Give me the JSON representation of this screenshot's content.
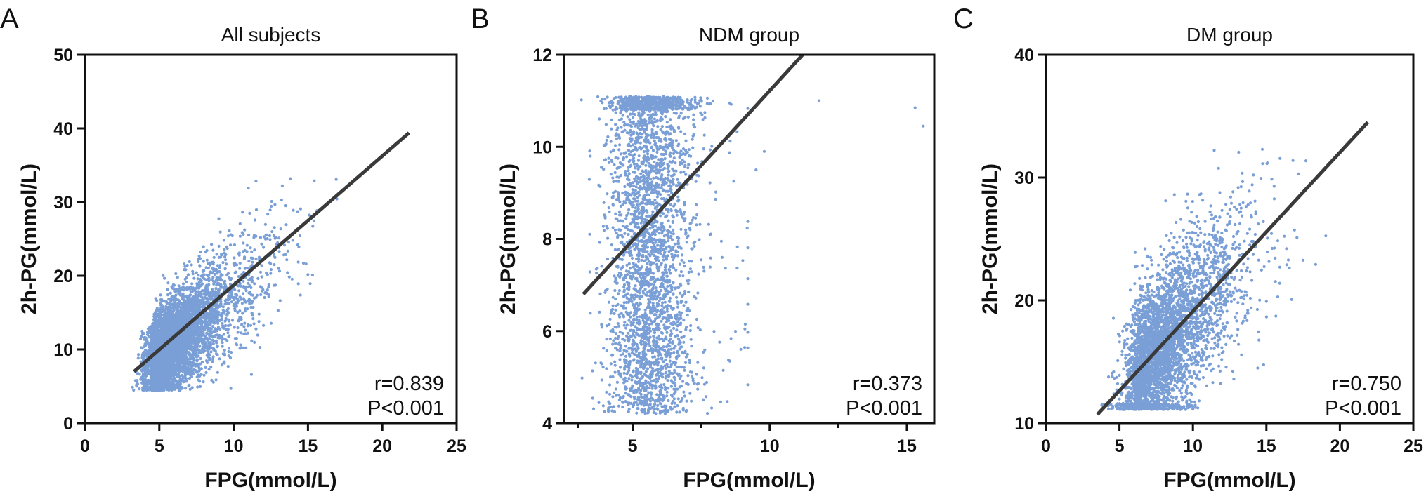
{
  "colors": {
    "points": "#7a9fd6",
    "fit_line": "#3a3a3a",
    "axes": "#111111"
  },
  "chart_data": [
    {
      "type": "scatter",
      "panel_letter": "A",
      "title": "All subjects",
      "xlabel": "FPG(mmol/L)",
      "ylabel": "2h-PG(mmol/L)",
      "xlim": [
        0,
        25
      ],
      "ylim": [
        0,
        50
      ],
      "xticks": [
        0,
        5,
        10,
        15,
        20,
        25
      ],
      "yticks": [
        0,
        10,
        20,
        30,
        40,
        50
      ],
      "xtick_labels": [
        "0",
        "5",
        "10",
        "15",
        "20",
        "25"
      ],
      "ytick_labels": [
        "0",
        "10",
        "20",
        "30",
        "40",
        "50"
      ],
      "fit_line": {
        "x": [
          3.3,
          21.8
        ],
        "y": [
          7.0,
          39.4
        ]
      },
      "stats": {
        "r": "r=0.839",
        "p": "P<0.001"
      },
      "point_cloud": {
        "n_points": 5200,
        "approx_x_range": [
          3.2,
          22.0
        ],
        "approx_y_range": [
          4.2,
          33.5
        ],
        "approx_center": [
          6.5,
          13.0
        ]
      }
    },
    {
      "type": "scatter",
      "panel_letter": "B",
      "title": "NDM group",
      "xlabel": "FPG(mmol/L)",
      "ylabel": "2h-PG(mmol/L)",
      "xlim": [
        2.5,
        16
      ],
      "ylim": [
        4,
        12
      ],
      "xticks": [
        5,
        10,
        15
      ],
      "yticks": [
        4,
        6,
        8,
        10,
        12
      ],
      "xtick_labels": [
        "5",
        "10",
        "15"
      ],
      "ytick_labels": [
        "4",
        "6",
        "8",
        "10",
        "12"
      ],
      "minor_xticks": [
        3,
        7.5,
        12.5
      ],
      "fit_line": {
        "x": [
          3.2,
          11.2
        ],
        "y": [
          6.8,
          12.0
        ]
      },
      "stats": {
        "r": "r=0.373",
        "p": "P<0.001"
      },
      "point_cloud": {
        "n_points": 3200,
        "approx_x_range": [
          3.1,
          9.0
        ],
        "approx_y_range": [
          4.2,
          11.1
        ],
        "approx_center": [
          5.6,
          8.0
        ],
        "outliers": [
          [
            15.3,
            10.85
          ],
          [
            15.6,
            10.45
          ],
          [
            11.8,
            11.0
          ],
          [
            9.5,
            9.5
          ],
          [
            9.8,
            9.9
          ]
        ]
      }
    },
    {
      "type": "scatter",
      "panel_letter": "C",
      "title": "DM group",
      "xlabel": "FPG(mmol/L)",
      "ylabel": "2h-PG(mmol/L)",
      "xlim": [
        0,
        25
      ],
      "ylim": [
        10,
        40
      ],
      "xticks": [
        0,
        5,
        10,
        15,
        20,
        25
      ],
      "yticks": [
        10,
        20,
        30,
        40
      ],
      "xtick_labels": [
        "0",
        "5",
        "10",
        "15",
        "20",
        "25"
      ],
      "ytick_labels": [
        "10",
        "20",
        "30",
        "40"
      ],
      "fit_line": {
        "x": [
          3.5,
          21.9
        ],
        "y": [
          10.7,
          34.5
        ]
      },
      "stats": {
        "r": "r=0.750",
        "p": "P<0.001"
      },
      "point_cloud": {
        "n_points": 3800,
        "approx_x_range": [
          3.8,
          22.0
        ],
        "approx_y_range": [
          11.1,
          33.5
        ],
        "approx_center": [
          8.0,
          16.5
        ]
      }
    }
  ]
}
